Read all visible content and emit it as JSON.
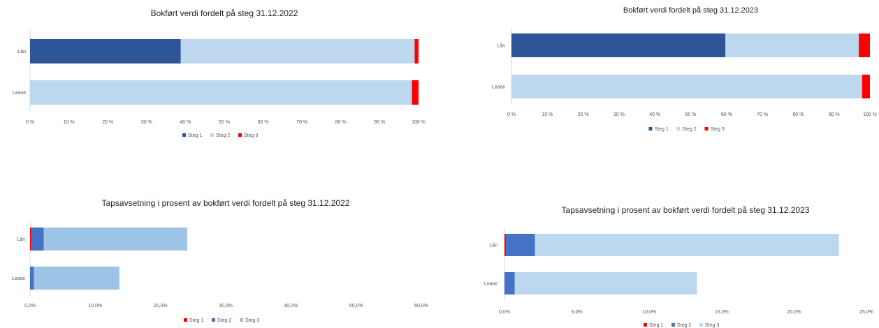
{
  "chart_data": [
    {
      "type": "bar",
      "orientation": "horizontal",
      "stacked": true,
      "title": "Bokført verdi fordelt på steg 31.12.2022",
      "categories": [
        "Lån",
        "Lease"
      ],
      "series": [
        {
          "name": "Steg 1",
          "color": "#2e5597",
          "values": [
            38.8,
            0
          ]
        },
        {
          "name": "Steg 2",
          "color": "#bdd7ee",
          "values": [
            60.2,
            98.3
          ]
        },
        {
          "name": "Steg 3",
          "color": "#ff0000",
          "values": [
            1.0,
            1.7
          ]
        }
      ],
      "xlim": [
        0,
        100
      ],
      "xticks": [
        "0 %",
        "10 %",
        "20 %",
        "30 %",
        "40 %",
        "50 %",
        "60 %",
        "70 %",
        "80 %",
        "90 %",
        "100 %"
      ],
      "grid": false,
      "legend": "bottom"
    },
    {
      "type": "bar",
      "orientation": "horizontal",
      "stacked": true,
      "title": "Bokført verdi fordelt på steg 31.12.2023",
      "categories": [
        "Lån",
        "Lease"
      ],
      "series": [
        {
          "name": "Steg 1",
          "color": "#2e5597",
          "values": [
            59.7,
            0
          ]
        },
        {
          "name": "Steg 2",
          "color": "#bdd7ee",
          "values": [
            37.2,
            97.8
          ]
        },
        {
          "name": "Steg 3",
          "color": "#ff0000",
          "values": [
            3.1,
            2.2
          ]
        }
      ],
      "xlim": [
        0,
        100
      ],
      "xticks": [
        "0 %",
        "10 %",
        "20 %",
        "30 %",
        "40 %",
        "50 %",
        "60 %",
        "70 %",
        "80 %",
        "90 %",
        "100 %"
      ],
      "grid": false,
      "legend": "bottom"
    },
    {
      "type": "bar",
      "orientation": "horizontal",
      "stacked": true,
      "title": "Tapsavsetning i prosent av bokført verdi fordelt på steg 31.12.2022",
      "categories": [
        "Lån",
        "Lease"
      ],
      "series": [
        {
          "name": "Steg 1",
          "color": "#ff0000",
          "values": [
            0.2,
            0.0
          ]
        },
        {
          "name": "Steg 2",
          "color": "#4472c4",
          "values": [
            1.9,
            0.6
          ]
        },
        {
          "name": "Steg 3",
          "color": "#9dc3e6",
          "values": [
            22.0,
            13.1
          ]
        }
      ],
      "xlim": [
        0,
        60
      ],
      "xticks": [
        "0,0%",
        "10,0%",
        "20,0%",
        "30,0%",
        "40,0%",
        "50,0%",
        "60,0%"
      ],
      "grid": false,
      "legend": "bottom"
    },
    {
      "type": "bar",
      "orientation": "horizontal",
      "stacked": true,
      "title": "Tapsavsetning i prosent av bokført verdi fordelt på steg 31.12.2023",
      "categories": [
        "Lån",
        "Lease"
      ],
      "series": [
        {
          "name": "Steg 1",
          "color": "#ff0000",
          "values": [
            0.1,
            0.0
          ]
        },
        {
          "name": "Steg 2",
          "color": "#4472c4",
          "values": [
            2.0,
            0.7
          ]
        },
        {
          "name": "Steg 3",
          "color": "#bdd7ee",
          "values": [
            21.0,
            12.6
          ]
        }
      ],
      "xlim": [
        0,
        25
      ],
      "xticks": [
        "0,0%",
        "5,0%",
        "10,0%",
        "15,0%",
        "20,0%",
        "25,0%"
      ],
      "grid": false,
      "legend": "bottom"
    }
  ]
}
